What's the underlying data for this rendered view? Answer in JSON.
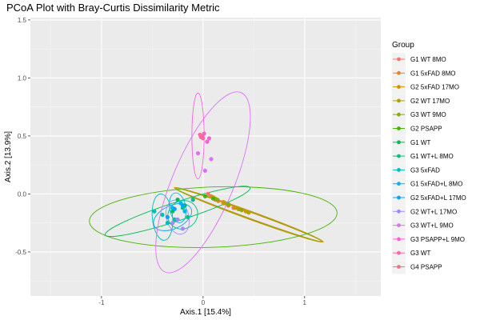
{
  "chart_data": {
    "type": "scatter",
    "title": "PCoA Plot with Bray-Curtis Dissimilarity Metric",
    "xlabel": "Axis.1   [15.4%]",
    "ylabel": "Axis.2   [13.9%]",
    "xlim": [
      -1.7,
      1.75
    ],
    "ylim": [
      -0.88,
      1.52
    ],
    "xticks": [
      -1,
      0,
      1
    ],
    "xtick_labels": [
      "-1",
      "0",
      "1"
    ],
    "yticks": [
      -0.5,
      0.0,
      0.5,
      1.0,
      1.5
    ],
    "ytick_labels": [
      "-0.5",
      "0.0",
      "0.5",
      "1.0",
      "1.5"
    ],
    "grid": true,
    "legend_title": "Group",
    "legend_position": "right",
    "series": [
      {
        "name": "G1 WT 8MO",
        "color": "#F8766D",
        "points": [
          [
            0.05,
            0.0
          ],
          [
            0.12,
            -0.05
          ],
          [
            0.2,
            -0.08
          ],
          [
            0.3,
            -0.12
          ]
        ],
        "ellipse": {
          "cx": 0.45,
          "cy": -0.18,
          "rx": 0.78,
          "ry": 0.025,
          "angle": -20
        }
      },
      {
        "name": "G1 5xFAD 8MO",
        "color": "#E7851E",
        "points": [
          [
            0.08,
            -0.02
          ],
          [
            0.15,
            -0.06
          ],
          [
            0.25,
            -0.1
          ],
          [
            0.35,
            -0.13
          ]
        ],
        "ellipse": {
          "cx": 0.45,
          "cy": -0.18,
          "rx": 0.78,
          "ry": 0.03,
          "angle": -20
        }
      },
      {
        "name": "G2 5xFAD 17MO",
        "color": "#D09400",
        "points": [
          [
            0.1,
            -0.03
          ],
          [
            0.2,
            -0.07
          ],
          [
            0.32,
            -0.12
          ],
          [
            0.42,
            -0.15
          ]
        ],
        "ellipse": {
          "cx": 0.45,
          "cy": -0.18,
          "rx": 0.78,
          "ry": 0.035,
          "angle": -20
        }
      },
      {
        "name": "G2 WT 17MO",
        "color": "#B2A100",
        "points": [
          [
            0.12,
            -0.04
          ],
          [
            0.22,
            -0.08
          ],
          [
            0.35,
            -0.13
          ],
          [
            0.45,
            -0.16
          ]
        ],
        "ellipse": {
          "cx": 0.45,
          "cy": -0.18,
          "rx": 0.77,
          "ry": 0.028,
          "angle": -20
        }
      },
      {
        "name": "G3 WT 9MO",
        "color": "#89AC00",
        "points": [
          [
            0.14,
            -0.05
          ],
          [
            0.25,
            -0.09
          ],
          [
            0.38,
            -0.14
          ]
        ],
        "ellipse": {
          "cx": 0.45,
          "cy": -0.18,
          "rx": 0.76,
          "ry": 0.03,
          "angle": -20
        }
      },
      {
        "name": "G2 PSAPP",
        "color": "#45B500",
        "points": [
          [
            0.02,
            -0.02
          ],
          [
            0.1,
            -0.04
          ]
        ],
        "ellipse": {
          "cx": 0.1,
          "cy": -0.2,
          "rx": 1.22,
          "ry": 0.26,
          "angle": 2
        }
      },
      {
        "name": "G1 WT",
        "color": "#00BC51",
        "points": [
          [
            -0.18,
            -0.1
          ],
          [
            -0.25,
            -0.05
          ],
          [
            -0.3,
            -0.15
          ]
        ],
        "ellipse": {
          "cx": -0.25,
          "cy": -0.15,
          "rx": 0.75,
          "ry": 0.08,
          "angle": 18
        }
      },
      {
        "name": "G1 WT+L 8MO",
        "color": "#00C087",
        "points": [
          [
            -0.2,
            -0.12
          ],
          [
            -0.15,
            -0.2
          ],
          [
            -0.28,
            -0.22
          ],
          [
            -0.1,
            -0.05
          ]
        ],
        "ellipse": {
          "cx": -0.2,
          "cy": -0.18,
          "rx": 0.15,
          "ry": 0.12,
          "angle": 30
        }
      },
      {
        "name": "G3 5xFAD",
        "color": "#00C0B2",
        "points": [
          [
            -0.4,
            -0.18
          ],
          [
            -0.35,
            -0.25
          ],
          [
            -0.48,
            -0.15
          ]
        ],
        "ellipse": {
          "cx": -0.4,
          "cy": -0.2,
          "rx": 0.1,
          "ry": 0.2,
          "angle": 5
        }
      },
      {
        "name": "G1 5xFAD+L 8MO",
        "color": "#00B6EB",
        "points": [
          [
            -0.22,
            -0.08
          ],
          [
            -0.3,
            -0.12
          ],
          [
            -0.18,
            -0.15
          ]
        ],
        "ellipse": {
          "cx": -0.25,
          "cy": -0.12,
          "rx": 0.08,
          "ry": 0.13,
          "angle": 10
        }
      },
      {
        "name": "G2 5xFAD+L 17MO",
        "color": "#06A4FF",
        "points": [
          [
            -0.28,
            -0.13
          ],
          [
            -0.35,
            -0.2
          ],
          [
            -0.2,
            -0.1
          ]
        ],
        "ellipse": {
          "cx": -0.3,
          "cy": -0.2,
          "rx": 0.2,
          "ry": 0.1,
          "angle": 25
        }
      },
      {
        "name": "G2 WT+L 17MO",
        "color": "#A58AFF",
        "points": [
          [
            -0.3,
            -0.25
          ],
          [
            -0.25,
            -0.22
          ],
          [
            -0.2,
            -0.3
          ]
        ],
        "ellipse": {
          "cx": -0.25,
          "cy": -0.2,
          "rx": 0.11,
          "ry": 0.15,
          "angle": 15
        }
      },
      {
        "name": "G3 WT+L 9MO",
        "color": "#DF70F8",
        "points": [
          [
            -0.05,
            0.35
          ],
          [
            0.02,
            0.2
          ],
          [
            0.08,
            0.3
          ],
          [
            -0.02,
            0.5
          ]
        ],
        "ellipse": {
          "cx": 0.0,
          "cy": 0.1,
          "rx": 0.3,
          "ry": 0.84,
          "angle": -23
        }
      },
      {
        "name": "G3 PSAPP+L 9MO",
        "color": "#FB61D7",
        "points": [
          [
            0.01,
            0.52
          ],
          [
            0.04,
            0.45
          ],
          [
            0.06,
            0.48
          ]
        ],
        "ellipse": {
          "cx": -0.05,
          "cy": 0.5,
          "rx": 0.06,
          "ry": 0.37,
          "angle": 0
        }
      },
      {
        "name": "G3 WT",
        "color": "#FF66A8",
        "points": [
          [
            -0.02,
            0.49
          ],
          [
            -0.01,
            0.5
          ],
          [
            0.0,
            0.48
          ]
        ],
        "ellipse": null
      },
      {
        "name": "G4 PSAPP",
        "color": "#FF6C91",
        "points": [
          [
            -0.03,
            0.51
          ]
        ],
        "ellipse": null
      }
    ]
  }
}
